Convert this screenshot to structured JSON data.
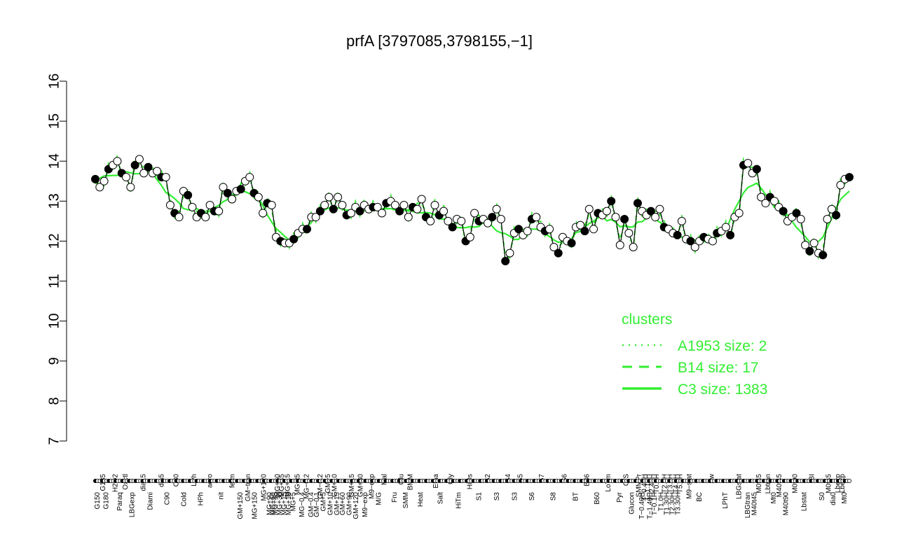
{
  "chart_data": {
    "type": "line",
    "title": "prfA [3797085,3798155,−1]",
    "xlabel": "",
    "ylabel": "",
    "ylim": [
      7,
      16
    ],
    "yticks": [
      7,
      8,
      9,
      10,
      11,
      12,
      13,
      14,
      15,
      16
    ],
    "ytick_labels": [
      "7",
      "8",
      "9",
      "10",
      "11",
      "12",
      "13",
      "14",
      "15",
      "16"
    ],
    "x_count": 400,
    "xtick_labels_upper": [
      {
        "i": 7,
        "label": "G135"
      },
      {
        "i": 18,
        "label": "H2O2"
      },
      {
        "i": 27,
        "label": "Oxctl"
      },
      {
        "i": 43,
        "label": "dia15"
      },
      {
        "i": 59,
        "label": "dia5"
      },
      {
        "i": 72,
        "label": "C30"
      },
      {
        "i": 88,
        "label": "LPh"
      },
      {
        "i": 102,
        "label": "aero"
      },
      {
        "i": 122,
        "label": "ferm"
      },
      {
        "i": 136,
        "label": "GM−tran"
      },
      {
        "i": 150,
        "label": "MG+120"
      },
      {
        "i": 162,
        "label": "MG+60"
      },
      {
        "i": 166,
        "label": "MG+45"
      },
      {
        "i": 171,
        "label": "MG+15"
      },
      {
        "i": 180,
        "label": "MG+t5"
      },
      {
        "i": 188,
        "label": "MG−0.2"
      },
      {
        "i": 200,
        "label": "GM−0.2"
      },
      {
        "i": 207,
        "label": "GM+5"
      },
      {
        "i": 213,
        "label": "GM+10"
      },
      {
        "i": 228,
        "label": "GM+15"
      },
      {
        "i": 236,
        "label": "GM+30"
      },
      {
        "i": 246,
        "label": "M9−exp"
      },
      {
        "i": 257,
        "label": "Mal"
      },
      {
        "i": 272,
        "label": "Glu"
      },
      {
        "i": 280,
        "label": "BMM"
      },
      {
        "i": 303,
        "label": "Etha"
      },
      {
        "i": 316,
        "label": "Gly"
      },
      {
        "i": 333,
        "label": "HiOs"
      },
      {
        "i": 349,
        "label": "S2"
      },
      {
        "i": 367,
        "label": "S4"
      },
      {
        "i": 378,
        "label": "S5"
      },
      {
        "i": 397,
        "label": "S7"
      },
      {
        "i": 417,
        "label": "S6"
      },
      {
        "i": 437,
        "label": "B36"
      },
      {
        "i": 456,
        "label": "LoTm"
      },
      {
        "i": 472,
        "label": "G/S"
      },
      {
        "i": 483,
        "label": "SMMPr"
      },
      {
        "i": 488,
        "label": "T−0.40H"
      },
      {
        "i": 491,
        "label": "T−1.10H"
      },
      {
        "i": 495,
        "label": "T−2.40H"
      },
      {
        "i": 499,
        "label": "T0.0H"
      },
      {
        "i": 506,
        "label": "T2.0H"
      },
      {
        "i": 511,
        "label": "T3.0H"
      },
      {
        "i": 516,
        "label": "T4.0H"
      },
      {
        "i": 520,
        "label": "T5.0H"
      },
      {
        "i": 528,
        "label": "M9−stat"
      },
      {
        "i": 548,
        "label": "Sw"
      },
      {
        "i": 572,
        "label": "LBGstat"
      },
      {
        "i": 590,
        "label": "M0t45"
      },
      {
        "i": 598,
        "label": "Lbtran"
      },
      {
        "i": 608,
        "label": "M40t45"
      },
      {
        "i": 622,
        "label": "M0t90"
      },
      {
        "i": 637,
        "label": "BI"
      },
      {
        "i": 652,
        "label": "M0t45"
      },
      {
        "i": 660,
        "label": "Lbexp"
      },
      {
        "i": 664,
        "label": "Lbexp"
      }
    ],
    "xtick_labels_lower": [
      {
        "i": 2,
        "label": "G150"
      },
      {
        "i": 10,
        "label": "G180"
      },
      {
        "i": 22,
        "label": "Paraq"
      },
      {
        "i": 33,
        "label": "LBGexp"
      },
      {
        "i": 49,
        "label": "Diami"
      },
      {
        "i": 64,
        "label": "C90"
      },
      {
        "i": 79,
        "label": "Cold"
      },
      {
        "i": 94,
        "label": "HPh"
      },
      {
        "i": 112,
        "label": "nit"
      },
      {
        "i": 129,
        "label": "GM+150"
      },
      {
        "i": 142,
        "label": "MG+150"
      },
      {
        "i": 155,
        "label": "MG+90"
      },
      {
        "i": 158,
        "label": "MG+60"
      },
      {
        "i": 160,
        "label": "MG+45"
      },
      {
        "i": 164,
        "label": "MG+30"
      },
      {
        "i": 168,
        "label": "MG+15"
      },
      {
        "i": 172,
        "label": "MG+10"
      },
      {
        "i": 176,
        "label": "MG+5"
      },
      {
        "i": 184,
        "label": "MG−0.4"
      },
      {
        "i": 192,
        "label": "GM−0.4"
      },
      {
        "i": 197,
        "label": "GM−0.1"
      },
      {
        "i": 203,
        "label": "GM+5"
      },
      {
        "i": 209,
        "label": "GM+10"
      },
      {
        "i": 215,
        "label": "GM+15"
      },
      {
        "i": 220,
        "label": "GM+60"
      },
      {
        "i": 226,
        "label": "GM+90"
      },
      {
        "i": 232,
        "label": "GM+120"
      },
      {
        "i": 240,
        "label": "M9−exp"
      },
      {
        "i": 252,
        "label": "M/G"
      },
      {
        "i": 266,
        "label": "Fru"
      },
      {
        "i": 276,
        "label": "SMM"
      },
      {
        "i": 289,
        "label": "Heat"
      },
      {
        "i": 307,
        "label": "Salt"
      },
      {
        "i": 323,
        "label": "HiTm"
      },
      {
        "i": 341,
        "label": "S1"
      },
      {
        "i": 357,
        "label": "S3"
      },
      {
        "i": 373,
        "label": "S3"
      },
      {
        "i": 388,
        "label": "S6"
      },
      {
        "i": 407,
        "label": "S8"
      },
      {
        "i": 427,
        "label": "BT"
      },
      {
        "i": 446,
        "label": "B60"
      },
      {
        "i": 466,
        "label": "Pyr"
      },
      {
        "i": 477,
        "label": "Glucon"
      },
      {
        "i": 486,
        "label": "T−0.40H"
      },
      {
        "i": 493,
        "label": "T−1.40H"
      },
      {
        "i": 497,
        "label": "T−0.1H"
      },
      {
        "i": 503,
        "label": "T1.0H"
      },
      {
        "i": 508,
        "label": "T1.30H"
      },
      {
        "i": 513,
        "label": "T2.30H"
      },
      {
        "i": 518,
        "label": "T3.30H"
      },
      {
        "i": 537,
        "label": "BC"
      },
      {
        "i": 560,
        "label": "LPhT"
      },
      {
        "i": 580,
        "label": "LBGtran"
      },
      {
        "i": 586,
        "label": "M40t45"
      },
      {
        "i": 603,
        "label": "Mt0"
      },
      {
        "i": 614,
        "label": "M40t90"
      },
      {
        "i": 630,
        "label": "Lbstat"
      },
      {
        "i": 646,
        "label": "S0"
      },
      {
        "i": 656,
        "label": "dia0"
      },
      {
        "i": 666,
        "label": "Mt0"
      }
    ],
    "x_index_max": 670,
    "series_points": [
      [
        0,
        13.55
      ],
      [
        2,
        13.35
      ],
      [
        4,
        13.5
      ],
      [
        6,
        13.8
      ],
      [
        8,
        13.9
      ],
      [
        10,
        14.0
      ],
      [
        12,
        13.7
      ],
      [
        14,
        13.6
      ],
      [
        16,
        13.35
      ],
      [
        18,
        13.9
      ],
      [
        20,
        14.05
      ],
      [
        22,
        13.7
      ],
      [
        24,
        13.85
      ],
      [
        26,
        13.7
      ],
      [
        28,
        13.75
      ],
      [
        30,
        13.6
      ],
      [
        32,
        13.6
      ],
      [
        34,
        12.9
      ],
      [
        36,
        12.7
      ],
      [
        38,
        12.6
      ],
      [
        40,
        13.25
      ],
      [
        42,
        13.15
      ],
      [
        44,
        12.85
      ],
      [
        46,
        12.6
      ],
      [
        48,
        12.7
      ],
      [
        50,
        12.6
      ],
      [
        52,
        12.9
      ],
      [
        54,
        12.75
      ],
      [
        56,
        12.75
      ],
      [
        58,
        13.35
      ],
      [
        60,
        13.2
      ],
      [
        62,
        13.05
      ],
      [
        64,
        13.25
      ],
      [
        66,
        13.3
      ],
      [
        68,
        13.5
      ],
      [
        70,
        13.6
      ],
      [
        72,
        13.2
      ],
      [
        74,
        13.1
      ],
      [
        76,
        12.7
      ],
      [
        78,
        12.95
      ],
      [
        80,
        12.9
      ],
      [
        82,
        12.1
      ],
      [
        84,
        12.0
      ],
      [
        86,
        11.95
      ],
      [
        88,
        11.95
      ],
      [
        90,
        12.05
      ],
      [
        92,
        12.2
      ],
      [
        94,
        12.3
      ],
      [
        96,
        12.3
      ],
      [
        98,
        12.6
      ],
      [
        100,
        12.6
      ],
      [
        102,
        12.75
      ],
      [
        104,
        12.9
      ],
      [
        106,
        13.1
      ],
      [
        108,
        12.8
      ],
      [
        110,
        13.1
      ],
      [
        112,
        12.9
      ],
      [
        114,
        12.65
      ],
      [
        116,
        12.7
      ],
      [
        118,
        12.85
      ],
      [
        120,
        12.75
      ],
      [
        122,
        12.9
      ],
      [
        124,
        12.8
      ],
      [
        126,
        12.85
      ],
      [
        128,
        12.85
      ],
      [
        130,
        12.7
      ],
      [
        132,
        12.95
      ],
      [
        134,
        13.0
      ],
      [
        136,
        12.9
      ],
      [
        138,
        12.75
      ],
      [
        140,
        12.9
      ],
      [
        142,
        12.6
      ],
      [
        144,
        12.85
      ],
      [
        146,
        12.8
      ],
      [
        148,
        13.05
      ],
      [
        150,
        12.6
      ],
      [
        152,
        12.5
      ],
      [
        154,
        12.9
      ],
      [
        156,
        12.65
      ],
      [
        158,
        12.75
      ],
      [
        160,
        12.5
      ],
      [
        162,
        12.35
      ],
      [
        164,
        12.55
      ],
      [
        166,
        12.5
      ],
      [
        168,
        12.0
      ],
      [
        170,
        12.1
      ],
      [
        172,
        12.7
      ],
      [
        174,
        12.5
      ],
      [
        176,
        12.55
      ],
      [
        178,
        12.45
      ],
      [
        180,
        12.6
      ],
      [
        182,
        12.8
      ],
      [
        184,
        12.55
      ],
      [
        186,
        11.5
      ],
      [
        188,
        11.7
      ],
      [
        190,
        12.2
      ],
      [
        192,
        12.3
      ],
      [
        194,
        12.15
      ],
      [
        196,
        12.25
      ],
      [
        198,
        12.55
      ],
      [
        200,
        12.6
      ],
      [
        202,
        12.35
      ],
      [
        204,
        12.25
      ],
      [
        206,
        12.3
      ],
      [
        208,
        11.85
      ],
      [
        210,
        11.7
      ],
      [
        212,
        12.1
      ],
      [
        214,
        12.0
      ],
      [
        216,
        11.95
      ],
      [
        218,
        12.35
      ],
      [
        220,
        12.4
      ],
      [
        222,
        12.25
      ],
      [
        224,
        12.8
      ],
      [
        226,
        12.3
      ],
      [
        228,
        12.7
      ],
      [
        230,
        12.65
      ],
      [
        232,
        12.75
      ],
      [
        234,
        13.0
      ],
      [
        236,
        12.6
      ],
      [
        238,
        11.9
      ],
      [
        240,
        12.55
      ],
      [
        242,
        12.2
      ],
      [
        244,
        11.85
      ],
      [
        246,
        12.95
      ],
      [
        248,
        12.75
      ],
      [
        250,
        12.65
      ],
      [
        252,
        12.75
      ],
      [
        254,
        12.6
      ],
      [
        256,
        12.8
      ],
      [
        258,
        12.35
      ],
      [
        260,
        12.3
      ],
      [
        262,
        12.2
      ],
      [
        264,
        12.15
      ],
      [
        266,
        12.5
      ],
      [
        268,
        12.05
      ],
      [
        270,
        12.0
      ],
      [
        272,
        11.85
      ],
      [
        274,
        12.0
      ],
      [
        276,
        12.1
      ],
      [
        278,
        12.05
      ],
      [
        280,
        12.0
      ],
      [
        282,
        12.2
      ],
      [
        284,
        12.25
      ],
      [
        286,
        12.35
      ],
      [
        288,
        12.15
      ],
      [
        290,
        12.6
      ],
      [
        292,
        12.7
      ],
      [
        294,
        13.9
      ],
      [
        296,
        13.95
      ],
      [
        298,
        13.7
      ],
      [
        300,
        13.8
      ],
      [
        302,
        13.1
      ],
      [
        304,
        12.95
      ],
      [
        306,
        13.1
      ],
      [
        308,
        13.0
      ],
      [
        310,
        12.85
      ],
      [
        312,
        12.75
      ],
      [
        314,
        12.5
      ],
      [
        316,
        12.6
      ],
      [
        318,
        12.7
      ],
      [
        320,
        12.55
      ],
      [
        322,
        11.9
      ],
      [
        324,
        11.75
      ],
      [
        326,
        11.95
      ],
      [
        328,
        11.7
      ],
      [
        330,
        11.65
      ],
      [
        332,
        12.55
      ],
      [
        334,
        12.8
      ],
      [
        336,
        12.65
      ],
      [
        338,
        13.4
      ],
      [
        340,
        13.55
      ],
      [
        342,
        13.6
      ]
    ],
    "legend": {
      "title": "clusters",
      "position": "right",
      "entries": [
        {
          "style": "dotted",
          "label": "A1953 size: 2"
        },
        {
          "style": "dashed",
          "label": "B14 size: 17"
        },
        {
          "style": "solid",
          "label": "C3 size: 1383"
        }
      ]
    },
    "colors": {
      "data_line": "#000000",
      "point_fill": "#000000",
      "point_hollow": "#ffffff",
      "cluster": "#33ee33"
    }
  }
}
